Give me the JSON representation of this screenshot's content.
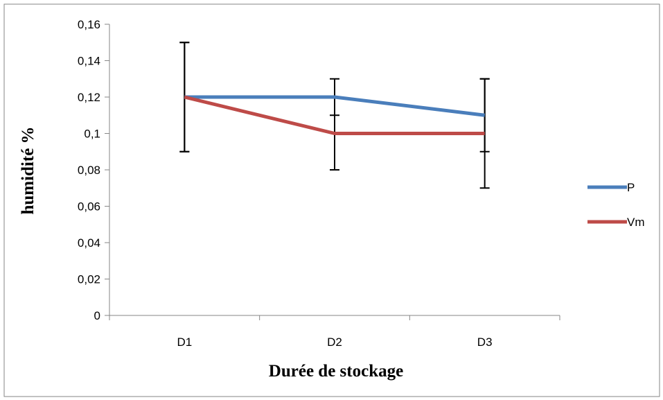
{
  "chart_data": {
    "type": "line",
    "categories": [
      "D1",
      "D2",
      "D3"
    ],
    "series": [
      {
        "name": "P",
        "values": [
          0.12,
          0.12,
          0.11
        ],
        "error": [
          0.03,
          0.01,
          0.02
        ],
        "color": "#4a7ebb"
      },
      {
        "name": "Vm",
        "values": [
          0.12,
          0.1,
          0.1
        ],
        "error": [
          0.03,
          0.02,
          0.03
        ],
        "color": "#be4b48"
      }
    ],
    "xlabel": "Durée de stockage",
    "ylabel": "humidité %",
    "ylim": [
      0,
      0.16
    ],
    "yticks": [
      "0",
      "0,02",
      "0,04",
      "0,06",
      "0,08",
      "0,1",
      "0,12",
      "0,14",
      "0,16"
    ],
    "grid": false,
    "legend": "right",
    "error_bar_color": "#000000"
  }
}
